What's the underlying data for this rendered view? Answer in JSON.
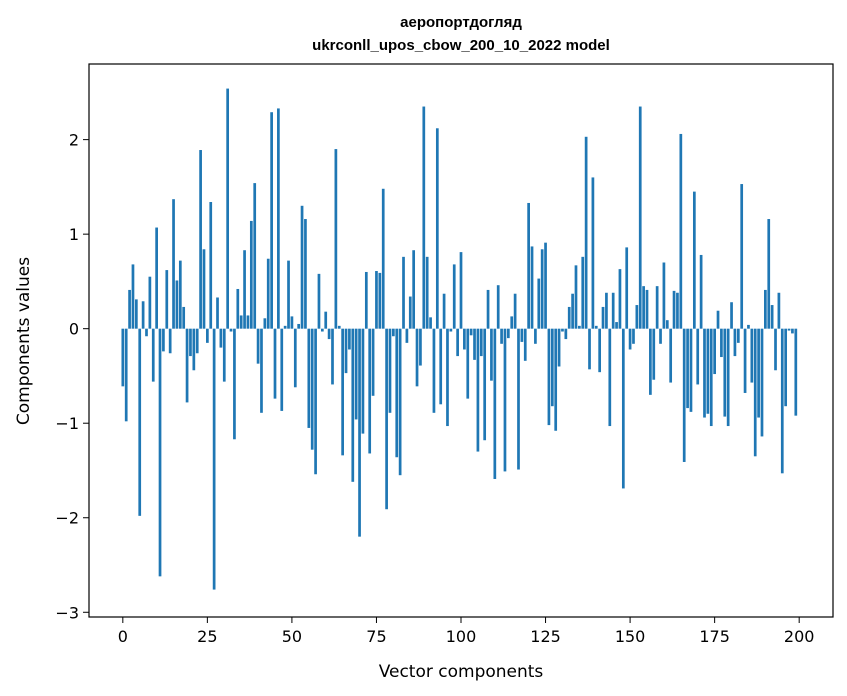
{
  "chart_data": {
    "type": "bar",
    "title": "аеропортдогляд",
    "subtitle": "ukrconll_upos_cbow_200_10_2022 model",
    "xlabel": "Vector components",
    "ylabel": "Components values",
    "xlim": [
      -10,
      210
    ],
    "ylim": [
      -3.05,
      2.8
    ],
    "xticks": [
      0,
      25,
      50,
      75,
      100,
      125,
      150,
      175,
      200
    ],
    "yticks": [
      -3,
      -2,
      -1,
      0,
      1,
      2
    ],
    "ytick_labels": [
      "−3",
      "−2",
      "−1",
      "0",
      "1",
      "2"
    ],
    "grid": false,
    "bar_color": "#1f77b4",
    "values": [
      -0.61,
      -0.98,
      0.41,
      0.68,
      0.31,
      -1.98,
      0.29,
      -0.08,
      0.55,
      -0.56,
      1.07,
      -2.62,
      -0.24,
      0.62,
      -0.26,
      1.37,
      0.51,
      0.72,
      0.23,
      -0.78,
      -0.29,
      -0.44,
      -0.26,
      1.89,
      0.84,
      -0.15,
      1.34,
      -2.76,
      0.33,
      -0.2,
      -0.56,
      2.54,
      -0.03,
      -1.17,
      0.42,
      0.14,
      0.83,
      0.14,
      1.14,
      1.54,
      -0.37,
      -0.89,
      0.11,
      0.74,
      2.29,
      -0.74,
      2.33,
      -0.87,
      0.03,
      0.72,
      0.13,
      -0.62,
      0.05,
      1.3,
      1.16,
      -1.05,
      -1.28,
      -1.54,
      0.58,
      -0.03,
      0.18,
      -0.11,
      -0.59,
      1.9,
      0.03,
      -1.34,
      -0.47,
      -0.22,
      -1.62,
      -0.96,
      -2.2,
      -1.11,
      0.6,
      -1.32,
      -0.71,
      0.61,
      0.59,
      1.48,
      -1.91,
      -0.89,
      -0.08,
      -1.36,
      -1.55,
      0.76,
      -0.15,
      0.34,
      0.83,
      -0.61,
      -0.39,
      2.35,
      0.76,
      0.12,
      -0.89,
      2.12,
      -0.8,
      0.37,
      -1.03,
      -0.03,
      0.68,
      -0.29,
      0.81,
      -0.22,
      -0.74,
      -0.07,
      -0.33,
      -1.3,
      -0.29,
      -1.18,
      0.41,
      -0.55,
      -1.59,
      0.46,
      -0.16,
      -1.51,
      -0.1,
      0.13,
      0.37,
      -1.49,
      -0.14,
      -0.34,
      1.33,
      0.87,
      -0.16,
      0.53,
      0.84,
      0.91,
      -1.02,
      -0.82,
      -1.08,
      -0.4,
      -0.03,
      -0.11,
      0.23,
      0.37,
      0.67,
      0.03,
      0.76,
      2.03,
      -0.43,
      1.6,
      0.03,
      -0.46,
      0.23,
      0.38,
      -1.03,
      0.38,
      0.07,
      0.63,
      -1.69,
      0.86,
      -0.22,
      -0.16,
      0.25,
      2.35,
      0.45,
      0.41,
      -0.7,
      -0.54,
      0.45,
      -0.16,
      0.7,
      0.09,
      -0.57,
      0.4,
      0.38,
      2.06,
      -1.41,
      -0.84,
      -0.88,
      1.45,
      -0.59,
      0.78,
      -0.94,
      -0.9,
      -1.03,
      -0.48,
      0.19,
      -0.3,
      -0.93,
      -1.03,
      0.28,
      -0.29,
      -0.15,
      1.53,
      -0.68,
      0.04,
      -0.57,
      -1.35,
      -0.94,
      -1.14,
      0.41,
      1.16,
      0.25,
      -0.44,
      0.38,
      -1.53,
      -0.82,
      -0.02,
      -0.05,
      -0.92
    ]
  }
}
